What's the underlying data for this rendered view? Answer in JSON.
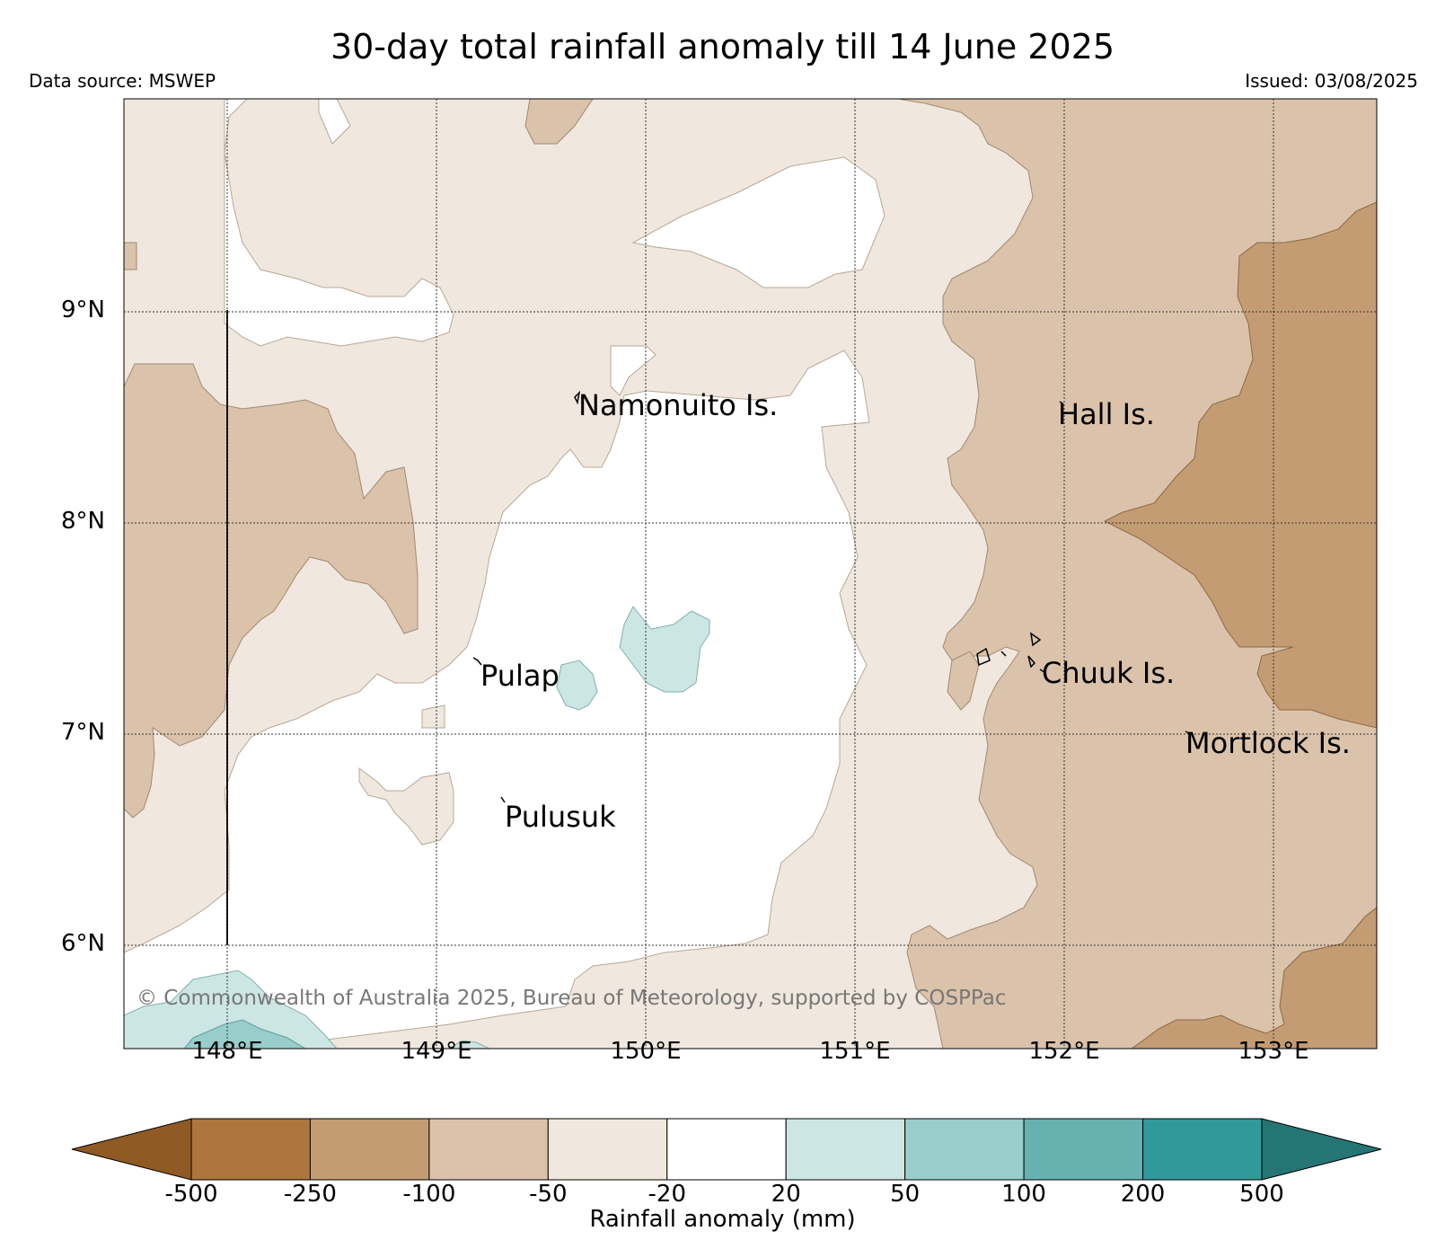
{
  "title": "30-day total rainfall anomaly till 14 June 2025",
  "data_source": "Data source: MSWEP",
  "issued": "Issued: 03/08/2025",
  "copyright": "© Commonwealth of Australia 2025, Bureau of Meteorology, supported by COSPPac",
  "lat_labels": [
    "9°N",
    "8°N",
    "7°N",
    "6°N"
  ],
  "lon_labels": [
    "148°E",
    "149°E",
    "150°E",
    "151°E",
    "152°E",
    "153°E"
  ],
  "places": [
    "Namonuito Is.",
    "Hall Is.",
    "Pulap",
    "Chuuk Is.",
    "Mortlock Is.",
    "Pulusuk"
  ],
  "colorbar": {
    "title": "Rainfall anomaly (mm)",
    "ticks": [
      "-500",
      "-250",
      "-100",
      "-50",
      "-20",
      "20",
      "50",
      "100",
      "200",
      "500"
    ],
    "colors": [
      "#8f5a23",
      "#ad763c",
      "#c49c73",
      "#dbc3ab",
      "#f0e7de",
      "#ffffff",
      "#cce6e4",
      "#98cdcb",
      "#66b2b0",
      "#31999a",
      "#267575"
    ]
  }
}
